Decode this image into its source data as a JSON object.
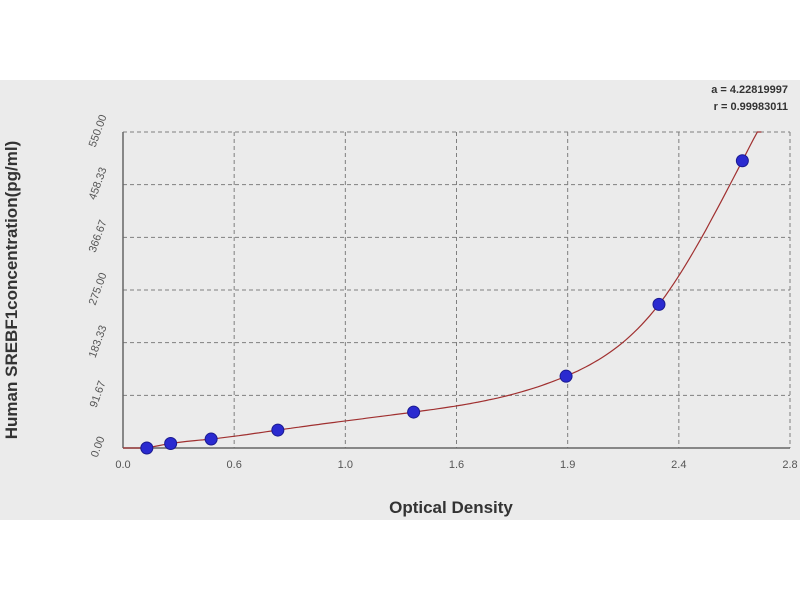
{
  "chart_data": {
    "type": "scatter",
    "xlabel": "Optical Density",
    "ylabel": "Human SREBF1concentration(pg/ml)",
    "xlim": [
      0.0,
      2.8
    ],
    "ylim": [
      0.0,
      550.0
    ],
    "x_ticks": [
      "0.0",
      "0.6",
      "1.0",
      "1.6",
      "1.9",
      "2.4",
      "2.8"
    ],
    "y_ticks": [
      "0.00",
      "91.67",
      "183.33",
      "275.00",
      "366.67",
      "458.33",
      "550.00"
    ],
    "grid": true,
    "series": [
      {
        "points": [
          {
            "x": 0.1,
            "y": 0
          },
          {
            "x": 0.2,
            "y": 7.8
          },
          {
            "x": 0.37,
            "y": 15.6
          },
          {
            "x": 0.65,
            "y": 31.2
          },
          {
            "x": 1.22,
            "y": 62.5
          },
          {
            "x": 1.86,
            "y": 125
          },
          {
            "x": 2.25,
            "y": 250
          },
          {
            "x": 2.6,
            "y": 500
          }
        ]
      }
    ],
    "fit_line": {
      "x_range": [
        0.0,
        2.68
      ],
      "color": "#a03030"
    },
    "fit_stats": [
      "a = 4.22819997",
      "r = 0.99983011"
    ],
    "colors": {
      "points": "#2a2ad0",
      "curve": "#a03030",
      "grid": "#7f7f7f",
      "frame": "#666666",
      "background": "#ebebeb"
    }
  }
}
